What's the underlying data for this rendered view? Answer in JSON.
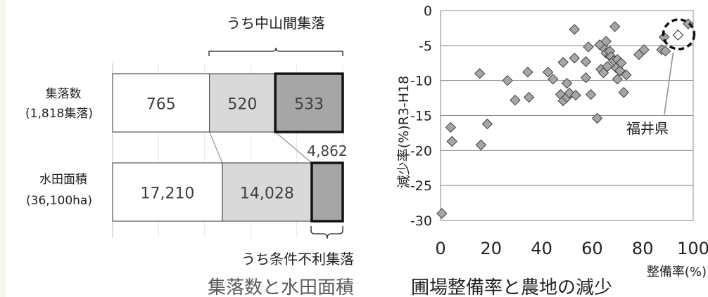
{
  "chart_data": [
    {
      "type": "bar",
      "stacked": true,
      "orientation": "horizontal",
      "title": "集落数と水田面積",
      "bracket_top_label": "うち中山間集落",
      "bracket_bottom_label": "うち条件不利集落",
      "colors": [
        "#ffffff",
        "#d9d9d9",
        "#a6a6a6"
      ],
      "rows": [
        {
          "label": "集落数",
          "sublabel": "(1,818集落)",
          "values": [
            765,
            520,
            533
          ],
          "value_labels": [
            "765",
            "520",
            "533"
          ],
          "outside_label": ""
        },
        {
          "label": "水田面積",
          "sublabel": "(36,100ha)",
          "values": [
            17210,
            14028,
            4862
          ],
          "value_labels": [
            "17,210",
            "14,028",
            ""
          ],
          "outside_label": "4,862"
        }
      ]
    },
    {
      "type": "scatter",
      "title": "圃場整備率と農地の減少",
      "xlabel": "整備率(%)",
      "ylabel": "減少率(%)R3-H18",
      "xlim": [
        0,
        100
      ],
      "ylim": [
        -30,
        0
      ],
      "xticks": [
        "0",
        "20",
        "40",
        "60",
        "80",
        "100"
      ],
      "yticks": [
        "0",
        "-5",
        "-10",
        "-15",
        "-20",
        "-25",
        "-30"
      ],
      "grid": "horizontal",
      "marker_color": "#a6a6a6",
      "points": [
        [
          0.5,
          -29
        ],
        [
          4,
          -16.7
        ],
        [
          4.5,
          -18.7
        ],
        [
          15.5,
          -9
        ],
        [
          16,
          -19.2
        ],
        [
          18.5,
          -16.2
        ],
        [
          26.5,
          -10
        ],
        [
          29.5,
          -12.8
        ],
        [
          34.5,
          -8.8
        ],
        [
          35,
          -12.4
        ],
        [
          42.5,
          -8.8
        ],
        [
          44.5,
          -9.8
        ],
        [
          47.5,
          -12
        ],
        [
          48.5,
          -7.4
        ],
        [
          48.5,
          -12.9
        ],
        [
          50,
          -10.4
        ],
        [
          50,
          -12.4
        ],
        [
          51,
          -11.8
        ],
        [
          53,
          -6.8
        ],
        [
          53,
          -2.7
        ],
        [
          53.5,
          -12.1
        ],
        [
          57.5,
          -9.6
        ],
        [
          57.5,
          -7.3
        ],
        [
          58.5,
          -5.2
        ],
        [
          59.5,
          -12
        ],
        [
          62,
          -15.4
        ],
        [
          63,
          -4.9
        ],
        [
          63.5,
          -8.4
        ],
        [
          64.5,
          -8.9
        ],
        [
          65,
          -5.5
        ],
        [
          65.5,
          -6.1
        ],
        [
          65.5,
          -4.4
        ],
        [
          66,
          -8
        ],
        [
          67,
          -6.5
        ],
        [
          67,
          -5.8
        ],
        [
          67.5,
          -6.6
        ],
        [
          68.5,
          -7.2
        ],
        [
          69,
          -2.3
        ],
        [
          69.5,
          -8.2
        ],
        [
          70,
          -7
        ],
        [
          70,
          -9.8
        ],
        [
          71,
          -8.6
        ],
        [
          71.5,
          -7.5
        ],
        [
          72.5,
          -11.7
        ],
        [
          73.5,
          -9.2
        ],
        [
          78.5,
          -6.3
        ],
        [
          80.5,
          -5.6
        ],
        [
          87.5,
          -5.6
        ],
        [
          88.5,
          -3.8
        ],
        [
          89,
          -5.8
        ],
        [
          98,
          -1.9
        ]
      ],
      "highlight": {
        "label": "福井県",
        "point": [
          94,
          -3.5
        ]
      }
    }
  ]
}
